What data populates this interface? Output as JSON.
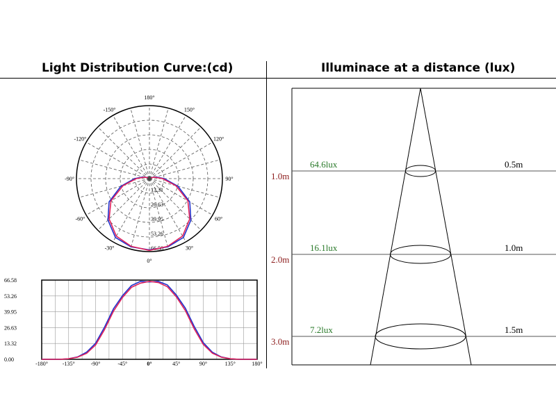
{
  "titles": {
    "left": "Light Distribution Curve:(cd)",
    "right": "Illuminace at a distance (lux)"
  },
  "colors": {
    "curve_c0": "#2233cc",
    "curve_c90": "#e0205a",
    "curve_c_alt": "#1a8a6a",
    "grid": "#555555",
    "lux_label": "#2a7a2a",
    "distance_label": "#8b1a1a"
  },
  "chart_data": [
    {
      "type": "polar",
      "title": "Light Distribution Curve:(cd)",
      "angle_labels": [
        "180°",
        "150°",
        "120°",
        "90°",
        "60°",
        "30°",
        "0°",
        "-30°",
        "-60°",
        "-90°",
        "-120°",
        "-150°"
      ],
      "radial_labels": [
        "13.31",
        "26.63",
        "39.95",
        "53.26",
        "66.58"
      ],
      "rlim": [
        0,
        66.58
      ],
      "series": [
        {
          "color": "blue",
          "points": [
            [
              0,
              65
            ],
            [
              15,
              64.5
            ],
            [
              30,
              62
            ],
            [
              45,
              53.5
            ],
            [
              60,
              42.5
            ],
            [
              75,
              27
            ],
            [
              90,
              13.5
            ],
            [
              105,
              6
            ],
            [
              120,
              2
            ],
            [
              135,
              0.5
            ],
            [
              150,
              0
            ],
            [
              165,
              0
            ],
            [
              180,
              0
            ]
          ]
        },
        {
          "color": "red",
          "points": [
            [
              0,
              65.5
            ],
            [
              15,
              64
            ],
            [
              30,
              60.5
            ],
            [
              45,
              52
            ],
            [
              60,
              40.5
            ],
            [
              75,
              25
            ],
            [
              90,
              12
            ],
            [
              105,
              5
            ],
            [
              120,
              1.5
            ],
            [
              135,
              0.3
            ],
            [
              150,
              0
            ],
            [
              165,
              0
            ],
            [
              180,
              0
            ]
          ]
        }
      ]
    },
    {
      "type": "line",
      "title": "",
      "xlabel": "",
      "ylabel": "",
      "x_ticks": [
        "-180°",
        "-135°",
        "-90°",
        "-45°",
        "0°",
        "45°",
        "90°",
        "135°",
        "180°"
      ],
      "y_ticks": [
        "0.00",
        "13.32",
        "26.63",
        "39.95",
        "53.26",
        "66.58"
      ],
      "xlim": [
        -180,
        180
      ],
      "ylim": [
        0,
        66.58
      ],
      "grid": true,
      "x": [
        -180,
        -165,
        -150,
        -135,
        -120,
        -105,
        -90,
        -75,
        -60,
        -45,
        -30,
        -15,
        0,
        15,
        30,
        45,
        60,
        75,
        90,
        105,
        120,
        135,
        150,
        165,
        180
      ],
      "series": [
        {
          "color": "blue",
          "values": [
            0,
            0,
            0,
            0.5,
            2,
            6,
            13.5,
            27,
            42.5,
            53.5,
            62,
            65.5,
            65,
            65.5,
            62.5,
            54,
            43,
            27.5,
            14,
            6,
            2,
            0.5,
            0,
            0,
            0
          ]
        },
        {
          "color": "red",
          "values": [
            0,
            0,
            0,
            0.5,
            1.8,
            5,
            12,
            25,
            40.5,
            52,
            60.5,
            64,
            65.5,
            64.5,
            61,
            52.5,
            41,
            25.5,
            12.5,
            5.2,
            1.8,
            0.5,
            0,
            0,
            0
          ]
        }
      ]
    },
    {
      "type": "diagram",
      "title": "Illuminace at a distance (lux)",
      "rows": [
        {
          "height": "1.0m",
          "lux": "64.6lux",
          "diameter": "0.5m"
        },
        {
          "height": "2.0m",
          "lux": "16.1lux",
          "diameter": "1.0m"
        },
        {
          "height": "3.0m",
          "lux": "7.2lux",
          "diameter": "1.5m"
        }
      ]
    }
  ]
}
